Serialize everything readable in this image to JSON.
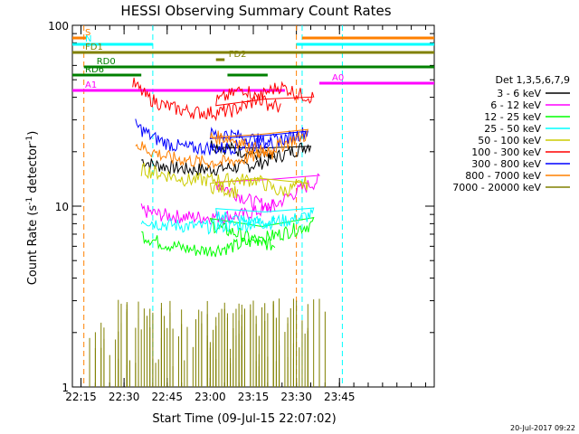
{
  "chart_data": {
    "type": "line",
    "title": "HESSI Observing Summary Count Rates",
    "xlabel": "Start Time (09-Jul-15 22:07:02)",
    "ylabel_main": "Count Rate (s",
    "ylabel_sup1": "-1",
    "ylabel_mid": " detector",
    "ylabel_sup2": "-1",
    "ylabel_end": ")",
    "yscale": "log",
    "ylim": [
      1,
      100
    ],
    "xlim_minutes": [
      22.12,
      23.78
    ],
    "x_ticks": [
      "22:15",
      "22:30",
      "22:45",
      "23:00",
      "23:15",
      "23:30",
      "23:45"
    ],
    "y_ticks": [
      "1",
      "10",
      "100"
    ],
    "timestamp": "20-Jul-2017 09:22",
    "legend": {
      "placement": "right",
      "title": "Det 1,3,5,6,7,9",
      "entries": [
        {
          "label": "3 - 6 keV",
          "color": "#000000"
        },
        {
          "label": "6 - 12 keV",
          "color": "#ff00ff"
        },
        {
          "label": "12 - 25 keV",
          "color": "#00ff00"
        },
        {
          "label": "25 - 50 keV",
          "color": "#00ffff"
        },
        {
          "label": "50 - 100 keV",
          "color": "#cccc00"
        },
        {
          "label": "100 - 300 keV",
          "color": "#ff0000"
        },
        {
          "label": "300 - 800 keV",
          "color": "#0000ff"
        },
        {
          "label": "800 - 7000 keV",
          "color": "#ff8000"
        },
        {
          "label": "7000 - 20000 keV",
          "color": "#808000"
        }
      ]
    },
    "series": [
      {
        "name": "3 - 6 keV",
        "color": "#000000",
        "points": [
          [
            22.36,
            18
          ],
          [
            22.4,
            17
          ],
          [
            22.46,
            16.5
          ],
          [
            22.52,
            16
          ],
          [
            22.58,
            16
          ],
          [
            22.64,
            16.2
          ],
          [
            22.7,
            16.5
          ],
          [
            22.76,
            17
          ],
          [
            22.8,
            18
          ],
          [
            22.84,
            19
          ],
          [
            22.88,
            20
          ],
          [
            22.95,
            22
          ],
          [
            23.0,
            22
          ],
          [
            23.06,
            21
          ],
          [
            23.12,
            20
          ],
          [
            23.18,
            19
          ],
          [
            23.23,
            18.5
          ]
        ]
      },
      {
        "name": "6 - 12 keV",
        "color": "#ff00ff",
        "points": [
          [
            22.36,
            9.5
          ],
          [
            22.42,
            9
          ],
          [
            22.48,
            8.8
          ],
          [
            22.54,
            8.7
          ],
          [
            22.6,
            8.7
          ],
          [
            22.66,
            8.8
          ],
          [
            22.72,
            9
          ],
          [
            22.78,
            9.5
          ],
          [
            22.82,
            10
          ],
          [
            22.86,
            11
          ],
          [
            22.9,
            12
          ],
          [
            22.94,
            13
          ],
          [
            22.98,
            14
          ],
          [
            23.02,
            13.5
          ],
          [
            23.06,
            12.5
          ],
          [
            23.1,
            11.5
          ],
          [
            23.15,
            10.5
          ],
          [
            23.23,
            10
          ]
        ]
      },
      {
        "name": "12 - 25 keV",
        "color": "#00ff00",
        "points": [
          [
            22.36,
            7
          ],
          [
            22.4,
            6.5
          ],
          [
            22.44,
            6.2
          ],
          [
            22.48,
            6
          ],
          [
            22.52,
            5.8
          ],
          [
            22.56,
            5.7
          ],
          [
            22.6,
            5.7
          ],
          [
            22.66,
            5.9
          ],
          [
            22.72,
            6.2
          ],
          [
            22.78,
            6.6
          ],
          [
            22.84,
            7
          ],
          [
            22.9,
            7.5
          ],
          [
            22.96,
            8
          ],
          [
            23.0,
            8
          ],
          [
            23.04,
            7.5
          ],
          [
            23.1,
            7
          ],
          [
            23.16,
            6.5
          ],
          [
            23.23,
            6
          ]
        ]
      },
      {
        "name": "25 - 50 keV",
        "color": "#00ffff",
        "points": [
          [
            22.36,
            8.5
          ],
          [
            22.42,
            8
          ],
          [
            22.5,
            7.8
          ],
          [
            22.58,
            7.7
          ],
          [
            22.66,
            7.8
          ],
          [
            22.74,
            8
          ],
          [
            22.82,
            8.2
          ],
          [
            22.9,
            8.5
          ],
          [
            22.96,
            9
          ],
          [
            23.02,
            9
          ],
          [
            23.08,
            8.5
          ],
          [
            23.14,
            8.2
          ],
          [
            23.23,
            8
          ]
        ]
      },
      {
        "name": "50 - 100 keV",
        "color": "#cccc00",
        "points": [
          [
            22.36,
            16
          ],
          [
            22.44,
            15
          ],
          [
            22.52,
            14
          ],
          [
            22.6,
            14
          ],
          [
            22.68,
            14
          ],
          [
            22.76,
            14
          ],
          [
            22.8,
            13
          ],
          [
            22.84,
            12
          ],
          [
            22.88,
            12.5
          ],
          [
            22.94,
            13.5
          ],
          [
            23.0,
            13
          ],
          [
            23.04,
            12.5
          ],
          [
            23.1,
            12
          ]
        ]
      },
      {
        "name": "100 - 300 keV",
        "color": "#ff0000",
        "points": [
          [
            22.33,
            48
          ],
          [
            22.38,
            40
          ],
          [
            22.44,
            36
          ],
          [
            22.5,
            34
          ],
          [
            22.56,
            33
          ],
          [
            22.62,
            33
          ],
          [
            22.68,
            34
          ],
          [
            22.74,
            37
          ],
          [
            22.8,
            43
          ],
          [
            22.84,
            46
          ],
          [
            22.88,
            44
          ],
          [
            22.9,
            42
          ],
          [
            22.96,
            40
          ],
          [
            23.02,
            38
          ],
          [
            23.08,
            42
          ],
          [
            23.12,
            45
          ],
          [
            23.16,
            40
          ],
          [
            23.2,
            37
          ],
          [
            23.25,
            35
          ]
        ]
      },
      {
        "name": "300 - 800 keV",
        "color": "#0000ff",
        "points": [
          [
            22.34,
            28
          ],
          [
            22.4,
            24
          ],
          [
            22.46,
            22
          ],
          [
            22.52,
            21
          ],
          [
            22.58,
            21
          ],
          [
            22.64,
            21
          ],
          [
            22.7,
            21.5
          ],
          [
            22.76,
            22
          ],
          [
            22.82,
            23
          ],
          [
            22.88,
            24
          ],
          [
            22.94,
            26
          ],
          [
            23.0,
            25
          ],
          [
            23.06,
            25
          ],
          [
            23.12,
            24
          ],
          [
            23.18,
            23
          ],
          [
            23.23,
            22
          ]
        ]
      },
      {
        "name": "800 - 7000 keV",
        "color": "#ff8000",
        "points": [
          [
            22.34,
            22
          ],
          [
            22.4,
            20
          ],
          [
            22.46,
            18.5
          ],
          [
            22.52,
            18
          ],
          [
            22.58,
            17.5
          ],
          [
            22.64,
            17.5
          ],
          [
            22.7,
            18
          ],
          [
            22.76,
            19
          ],
          [
            22.82,
            21
          ],
          [
            22.88,
            23
          ],
          [
            22.94,
            25
          ],
          [
            23.0,
            24
          ],
          [
            23.06,
            24
          ],
          [
            23.12,
            22
          ],
          [
            23.18,
            20
          ],
          [
            23.23,
            19
          ]
        ]
      }
    ],
    "attenuator_bars": [
      {
        "label": "S",
        "color": "#ff8000",
        "segments": [
          [
            22.12,
            22.17
          ],
          [
            23.32,
            23.78
          ]
        ]
      },
      {
        "label": "N",
        "color": "#00ffff",
        "segments": [
          [
            22.12,
            22.4
          ],
          [
            23.3,
            23.78
          ]
        ]
      },
      {
        "label": "FD1",
        "color": "#808000",
        "segments": [
          [
            22.12,
            23.78
          ]
        ]
      },
      {
        "label": "FD2",
        "color": "#808000",
        "segments": [
          [
            23.02,
            23.05
          ]
        ]
      },
      {
        "label": "RD0",
        "color": "#008000",
        "segments": [
          [
            22.16,
            22.95
          ],
          [
            23.06,
            23.78
          ]
        ]
      },
      {
        "label": "RD6",
        "color": "#008000",
        "segments": [
          [
            22.12,
            22.36
          ],
          [
            22.8,
            23.06
          ]
        ]
      },
      {
        "label": "A0",
        "color": "#ff00ff",
        "segments": [
          [
            22.98,
            23.78
          ]
        ]
      },
      {
        "label": "A1",
        "color": "#ff00ff",
        "segments": [
          [
            22.12,
            22.86
          ]
        ]
      }
    ]
  }
}
